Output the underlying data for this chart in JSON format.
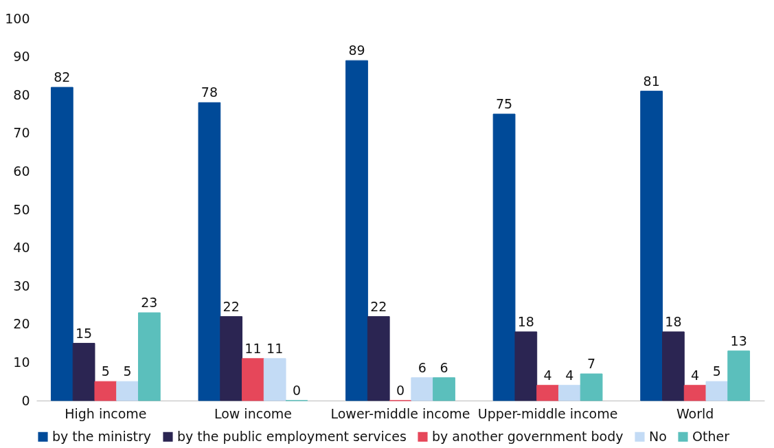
{
  "chart_data": {
    "type": "bar",
    "categories": [
      "High income",
      "Low income",
      "Lower-middle income",
      "Upper-middle income",
      "World"
    ],
    "series": [
      {
        "name": "by the ministry",
        "color": "#004a98",
        "values": [
          82,
          78,
          89,
          75,
          81
        ]
      },
      {
        "name": "by the public employment services",
        "color": "#2b2552",
        "values": [
          15,
          22,
          22,
          18,
          18
        ]
      },
      {
        "name": "by another government body",
        "color": "#e6475a",
        "values": [
          5,
          11,
          0,
          4,
          4
        ]
      },
      {
        "name": "No",
        "color": "#c3dbf5",
        "values": [
          5,
          11,
          6,
          4,
          5
        ]
      },
      {
        "name": "Other",
        "color": "#5bbfbc",
        "values": [
          23,
          0,
          6,
          7,
          13
        ]
      }
    ],
    "ylim": [
      0,
      100
    ],
    "yticks": [
      0,
      10,
      20,
      30,
      40,
      50,
      60,
      70,
      80,
      90,
      100
    ],
    "grid": false,
    "legend": "bottom",
    "data_labels": true
  }
}
